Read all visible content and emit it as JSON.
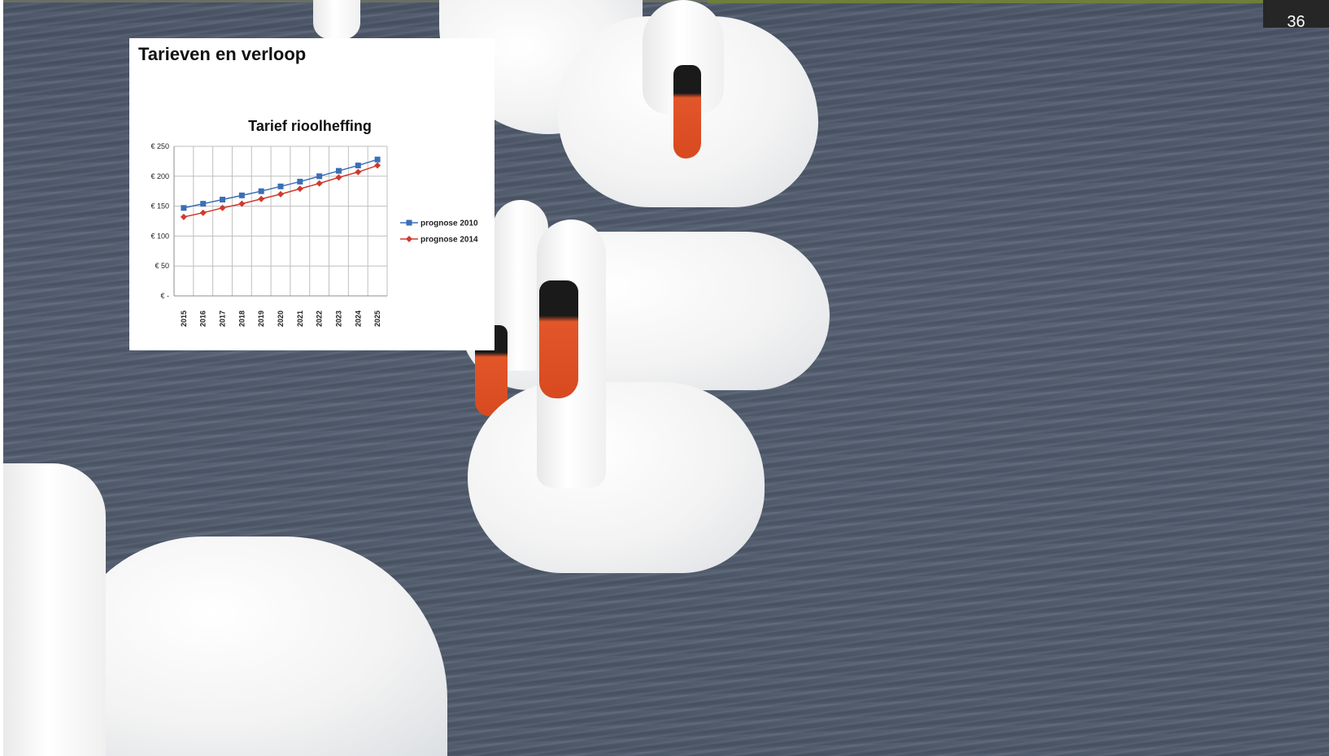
{
  "slide": {
    "number": "36",
    "title": "Tarieven en verloop"
  },
  "colors": {
    "series_2010": "#3a6fb5",
    "series_2014": "#d03a2e"
  },
  "chart_data": {
    "type": "line",
    "title": "Tarief rioolheffing",
    "xlabel": "",
    "ylabel": "",
    "x": [
      "2015",
      "2016",
      "2017",
      "2018",
      "2019",
      "2020",
      "2021",
      "2022",
      "2023",
      "2024",
      "2025"
    ],
    "ylim": [
      0,
      250
    ],
    "yticks": [
      0,
      50,
      100,
      150,
      200,
      250
    ],
    "ytick_labels": [
      "€ -",
      "€ 50",
      "€ 100",
      "€ 150",
      "€ 200",
      "€ 250"
    ],
    "grid": true,
    "legend": "right",
    "series": [
      {
        "name": "prognose 2010",
        "marker": "square",
        "color": "#3a6fb5",
        "values": [
          147,
          154,
          161,
          168,
          175,
          183,
          191,
          200,
          209,
          218,
          228
        ]
      },
      {
        "name": "prognose 2014",
        "marker": "diamond",
        "color": "#d03a2e",
        "values": [
          132,
          139,
          147,
          154,
          162,
          170,
          179,
          188,
          198,
          207,
          218
        ]
      }
    ]
  }
}
